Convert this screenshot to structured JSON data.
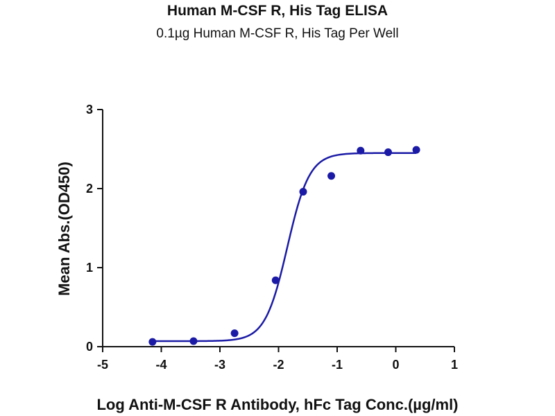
{
  "chart_data": {
    "type": "scatter",
    "title": "Human M-CSF R, His Tag ELISA",
    "subtitle": "0.1µg Human M-CSF R, His Tag Per Well",
    "xlabel": "Log Anti-M-CSF R Antibody, hFc Tag Conc.(µg/ml)",
    "ylabel": "Mean Abs.(OD450)",
    "xlim": [
      -5,
      1
    ],
    "ylim": [
      0,
      3
    ],
    "x_ticks": [
      -5,
      -4,
      -3,
      -2,
      -1,
      0,
      1
    ],
    "y_ticks": [
      0,
      1,
      2,
      3
    ],
    "grid": false,
    "colors": {
      "series": "#1a1aa6",
      "axis": "#111111"
    },
    "series": [
      {
        "points": [
          {
            "x": -4.15,
            "y": 0.06
          },
          {
            "x": -3.45,
            "y": 0.07
          },
          {
            "x": -2.75,
            "y": 0.17
          },
          {
            "x": -2.05,
            "y": 0.84
          },
          {
            "x": -1.58,
            "y": 1.96
          },
          {
            "x": -1.1,
            "y": 2.16
          },
          {
            "x": -0.6,
            "y": 2.48
          },
          {
            "x": -0.13,
            "y": 2.46
          },
          {
            "x": 0.35,
            "y": 2.49
          }
        ],
        "fit": {
          "model": "4PL",
          "bottom": 0.07,
          "top": 2.45,
          "logEC50": -1.85,
          "hill": 2.3,
          "x_range": [
            -4.15,
            0.35
          ]
        }
      }
    ]
  }
}
